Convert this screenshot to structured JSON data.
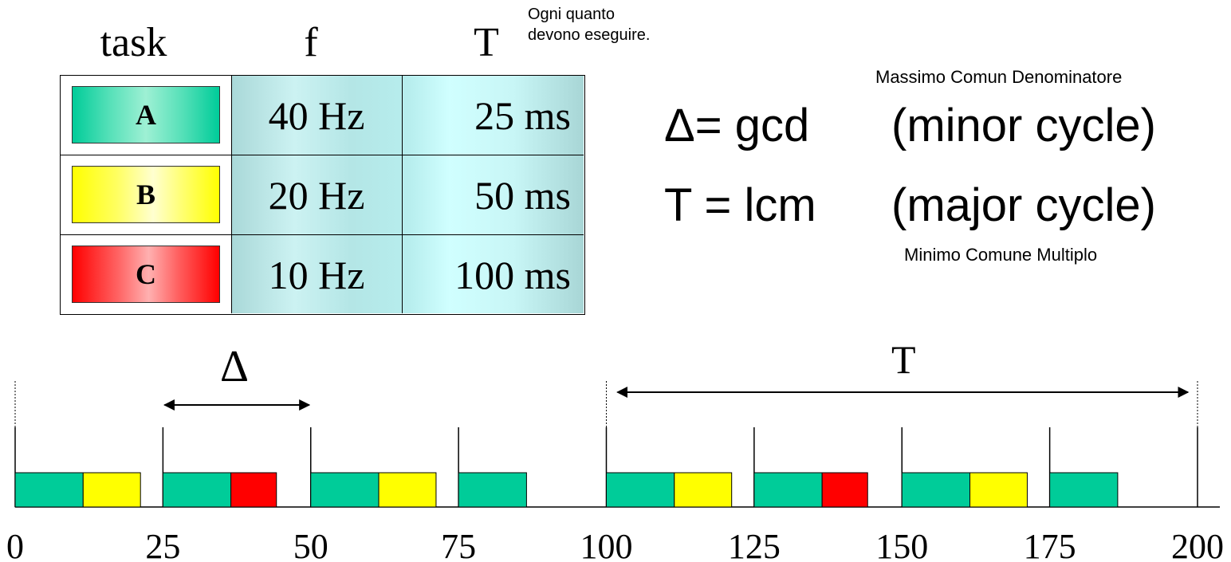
{
  "table": {
    "headers": {
      "task": "task",
      "f": "f",
      "T": "T"
    },
    "note_line1": "Ogni quanto",
    "note_line2": "devono eseguire.",
    "rows": [
      {
        "task": "A",
        "f": "40 Hz",
        "T": "25 ms",
        "color": "#00cc99"
      },
      {
        "task": "B",
        "f": "20 Hz",
        "T": "50 ms",
        "color": "#ffff00"
      },
      {
        "task": "C",
        "f": "10 Hz",
        "T": "100 ms",
        "color": "#ff0000"
      }
    ]
  },
  "formulas": {
    "gcd_note": "Massimo Comun Denominatore",
    "delta_lhs": "Δ= gcd",
    "delta_rhs": "(minor cycle)",
    "T_lhs": "T = lcm",
    "T_rhs": "(major cycle)",
    "lcm_note": "Minimo Comune Multiplo"
  },
  "timeline": {
    "delta_label": "Δ",
    "T_label": "T",
    "ticks": [
      "0",
      "25",
      "50",
      "75",
      "100",
      "125",
      "150",
      "175",
      "200"
    ],
    "slots": [
      {
        "start": 0,
        "tasks": [
          "A",
          "B"
        ]
      },
      {
        "start": 25,
        "tasks": [
          "A",
          "C"
        ]
      },
      {
        "start": 50,
        "tasks": [
          "A",
          "B"
        ]
      },
      {
        "start": 75,
        "tasks": [
          "A"
        ]
      },
      {
        "start": 100,
        "tasks": [
          "A",
          "B"
        ]
      },
      {
        "start": 125,
        "tasks": [
          "A",
          "C"
        ]
      },
      {
        "start": 150,
        "tasks": [
          "A",
          "B"
        ]
      },
      {
        "start": 175,
        "tasks": [
          "A"
        ]
      }
    ],
    "durations": {
      "A": 11.5,
      "B": 9.7,
      "C": 7.7
    },
    "colors": {
      "A": "#00cc99",
      "B": "#ffff00",
      "C": "#ff0000"
    }
  }
}
